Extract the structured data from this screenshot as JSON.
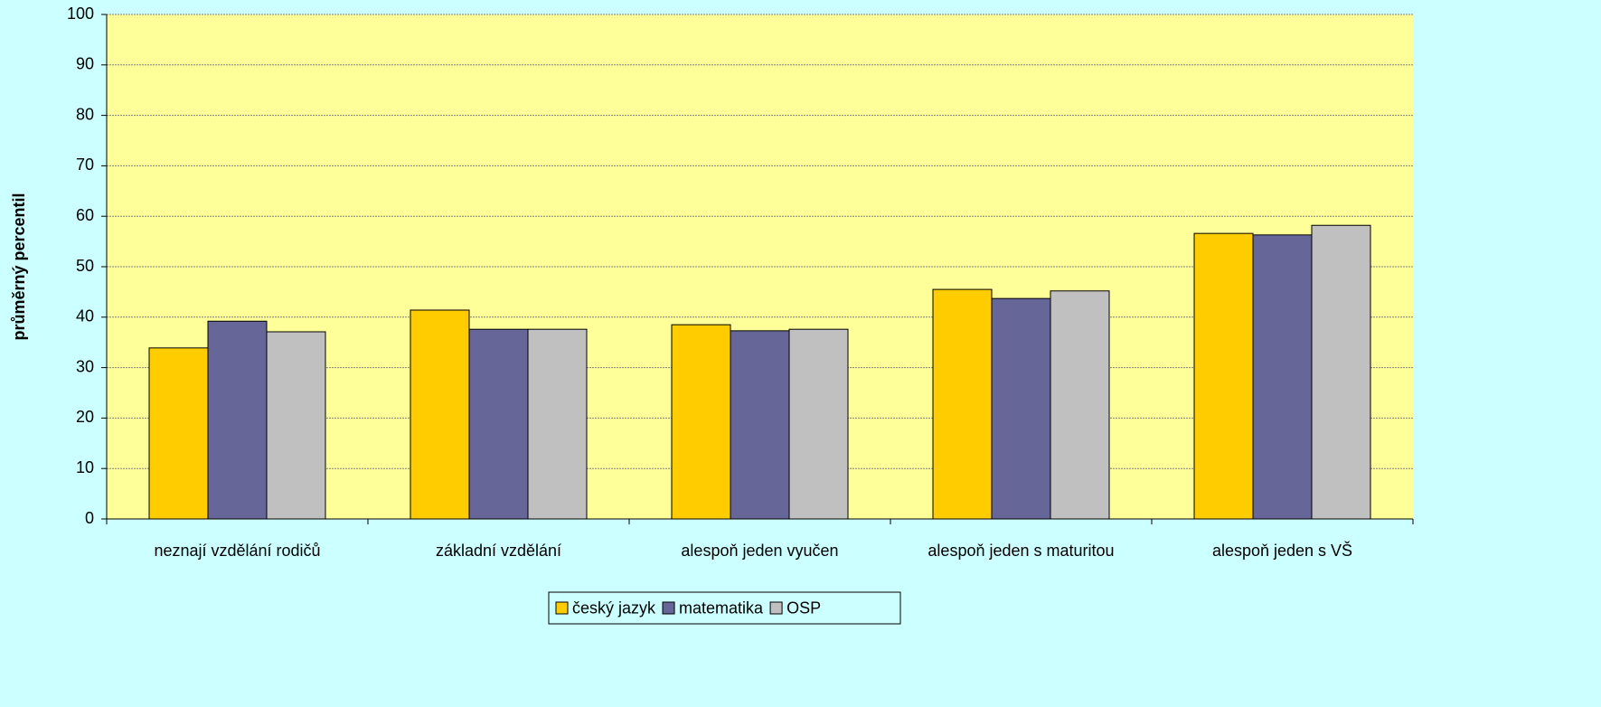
{
  "chart_data": {
    "type": "bar",
    "y_label": "průměrný percentil",
    "categories": [
      "neznají vzdělání rodičů",
      "základní vzdělání",
      "alespoň jeden vyučen",
      "alespoň jeden s maturitou",
      "alespoň jeden s VŠ"
    ],
    "series": [
      {
        "name": "český jazyk",
        "color": "#ffcc00",
        "values": [
          33.9,
          41.4,
          38.5,
          45.5,
          56.6
        ]
      },
      {
        "name": "matematika",
        "color": "#666699",
        "values": [
          39.2,
          37.6,
          37.3,
          43.7,
          56.3
        ]
      },
      {
        "name": "OSP",
        "color": "#c0c0c0",
        "values": [
          37.1,
          37.6,
          37.6,
          45.2,
          58.2
        ]
      }
    ],
    "ylim": [
      0,
      100
    ],
    "yticks": [
      0,
      10,
      20,
      30,
      40,
      50,
      60,
      70,
      80,
      90,
      100
    ],
    "grid": true,
    "legend": "bottom"
  }
}
